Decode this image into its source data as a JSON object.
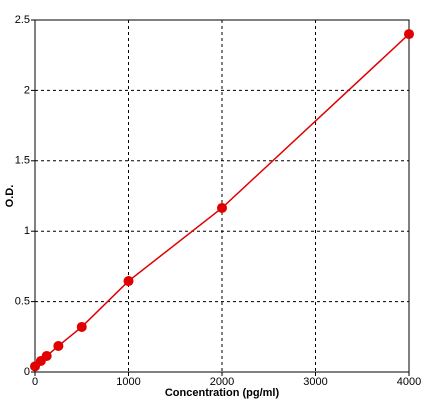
{
  "chart_data": {
    "type": "line",
    "x_label": "Concentration (pg/ml)",
    "y_label": "O.D.",
    "x": [
      0,
      62.5,
      125,
      250,
      500,
      1000,
      2000,
      4000
    ],
    "series": [
      {
        "color": "#e00000",
        "values": [
          0.04,
          0.078,
          0.114,
          0.185,
          0.32,
          0.646,
          1.165,
          2.4
        ]
      }
    ],
    "xlim": [
      0,
      4000
    ],
    "xticks": [
      0,
      1000,
      2000,
      3000,
      4000
    ],
    "ylim": [
      0,
      2.5
    ],
    "yticks": [
      0,
      0.5,
      1,
      1.5,
      2,
      2.5
    ],
    "grid": true,
    "markers": true
  }
}
